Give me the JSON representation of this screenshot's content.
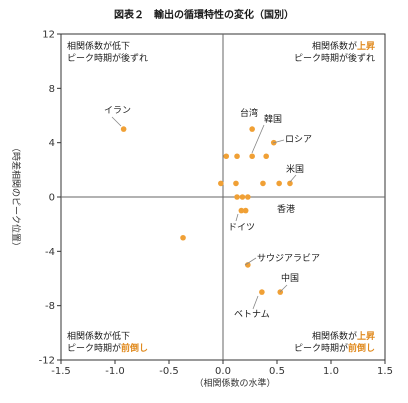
{
  "chart_data": {
    "type": "scatter",
    "title": "図表２　輸出の循環特性の変化（国別）",
    "xlabel": "（相関係数の水準）",
    "ylabel": "（時差相関のピーク位置）",
    "xlim": [
      -1.5,
      1.5
    ],
    "ylim": [
      -12,
      12
    ],
    "x_ticks": [
      "-1.5",
      "-1.0",
      "-0.5",
      "0.0",
      "0.5",
      "1.0",
      "1.5"
    ],
    "y_ticks": [
      "12",
      "8",
      "4",
      "0",
      "-4",
      "-8",
      "-12"
    ],
    "grid": false,
    "marker_color": "#f0a035",
    "quadrant_notes": {
      "top_left": {
        "line1": "相関係数が低下",
        "line2": "ピーク時期が後ずれ"
      },
      "top_right": {
        "line1_pre": "相関係数が",
        "line1_hl": "上昇",
        "line2": "ピーク時期が後ずれ"
      },
      "bottom_left": {
        "line1": "相関係数が低下",
        "line2_pre": "ピーク時期が",
        "line2_hl": "前倒し"
      },
      "bottom_right": {
        "line1_pre": "相関係数が",
        "line1_hl": "上昇",
        "line2_pre": "ピーク時期が",
        "line2_hl": "前倒し"
      }
    },
    "points": [
      {
        "x": -0.92,
        "y": 5.0
      },
      {
        "x": 0.27,
        "y": 5.0
      },
      {
        "x": 0.47,
        "y": 4.0
      },
      {
        "x": 0.27,
        "y": 3.0
      },
      {
        "x": 0.4,
        "y": 3.0
      },
      {
        "x": 0.03,
        "y": 3.0
      },
      {
        "x": 0.13,
        "y": 3.0
      },
      {
        "x": 0.62,
        "y": 1.0
      },
      {
        "x": 0.52,
        "y": 1.0
      },
      {
        "x": 0.37,
        "y": 1.0
      },
      {
        "x": -0.02,
        "y": 1.0
      },
      {
        "x": 0.12,
        "y": 1.0
      },
      {
        "x": 0.13,
        "y": 0.0
      },
      {
        "x": 0.18,
        "y": 0.0
      },
      {
        "x": 0.23,
        "y": 0.0
      },
      {
        "x": 0.17,
        "y": -1.0
      },
      {
        "x": 0.21,
        "y": -1.0
      },
      {
        "x": -0.37,
        "y": -3.0
      },
      {
        "x": 0.23,
        "y": -5.0
      },
      {
        "x": 0.36,
        "y": -7.0
      },
      {
        "x": 0.53,
        "y": -7.0
      }
    ],
    "labels": [
      "イラン",
      "台湾",
      "韓国",
      "ロシア",
      "米国",
      "香港",
      "ドイツ",
      "サウジアラビア",
      "中国",
      "ベトナム"
    ]
  }
}
